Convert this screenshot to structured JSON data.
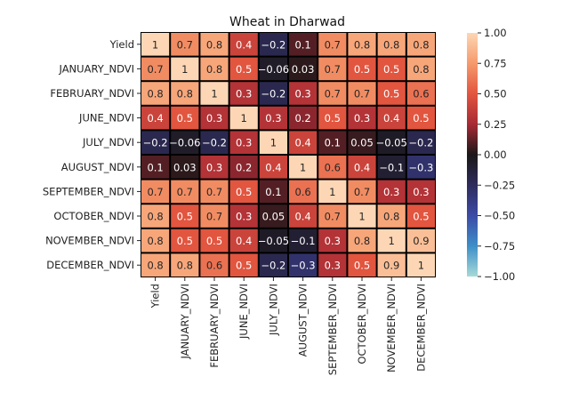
{
  "chart_data": {
    "type": "heatmap",
    "title": "Wheat in Dharwad",
    "labels": [
      "Yield",
      "JANUARY_NDVI",
      "FEBRUARY_NDVI",
      "JUNE_NDVI",
      "JULY_NDVI",
      "AUGUST_NDVI",
      "SEPTEMBER_NDVI",
      "OCTOBER_NDVI",
      "NOVEMBER_NDVI",
      "DECEMBER_NDVI"
    ],
    "values": [
      [
        1,
        0.7,
        0.8,
        0.4,
        -0.2,
        0.1,
        0.7,
        0.8,
        0.8,
        0.8
      ],
      [
        0.7,
        1,
        0.8,
        0.5,
        -0.06,
        0.03,
        0.7,
        0.5,
        0.5,
        0.8
      ],
      [
        0.8,
        0.8,
        1,
        0.3,
        -0.2,
        0.3,
        0.7,
        0.7,
        0.5,
        0.6
      ],
      [
        0.4,
        0.5,
        0.3,
        1,
        0.3,
        0.2,
        0.5,
        0.3,
        0.4,
        0.5
      ],
      [
        -0.2,
        -0.06,
        -0.2,
        0.3,
        1,
        0.4,
        0.1,
        0.05,
        -0.05,
        -0.2
      ],
      [
        0.1,
        0.03,
        0.3,
        0.2,
        0.4,
        1,
        0.6,
        0.4,
        -0.1,
        -0.3
      ],
      [
        0.7,
        0.7,
        0.7,
        0.5,
        0.1,
        0.6,
        1,
        0.7,
        0.3,
        0.3
      ],
      [
        0.8,
        0.5,
        0.7,
        0.3,
        0.05,
        0.4,
        0.7,
        1,
        0.8,
        0.5
      ],
      [
        0.8,
        0.5,
        0.5,
        0.4,
        -0.05,
        -0.1,
        0.3,
        0.8,
        1,
        0.9
      ],
      [
        0.8,
        0.8,
        0.6,
        0.5,
        -0.2,
        -0.3,
        0.3,
        0.5,
        0.9,
        1
      ]
    ],
    "colorbar": {
      "range": [
        -1.0,
        1.0
      ],
      "ticks": [
        "1.00",
        "0.75",
        "0.50",
        "0.25",
        "0.00",
        "−0.25",
        "−0.50",
        "−0.75",
        "−1.00"
      ],
      "tick_values": [
        1.0,
        0.75,
        0.5,
        0.25,
        0.0,
        -0.25,
        -0.5,
        -0.75,
        -1.0
      ],
      "colormap": "icefire"
    }
  }
}
